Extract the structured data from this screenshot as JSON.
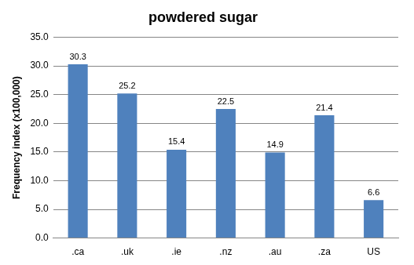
{
  "chart_data": {
    "type": "bar",
    "title": "powdered sugar",
    "y_label": "Frequency index (x100,000)",
    "categories": [
      ".ca",
      ".uk",
      ".ie",
      ".nz",
      ".au",
      ".za",
      "US"
    ],
    "values": [
      30.3,
      25.2,
      15.4,
      22.5,
      14.9,
      21.4,
      6.6
    ],
    "color": "#4f81bd",
    "ylim": [
      0,
      35
    ],
    "yticks": [
      {
        "value": 0,
        "label": "0.0"
      },
      {
        "value": 5,
        "label": "5.0"
      },
      {
        "value": 10,
        "label": "10.0"
      },
      {
        "value": 15,
        "label": "15.0"
      },
      {
        "value": 20,
        "label": "20.0"
      },
      {
        "value": 25,
        "label": "25.0"
      },
      {
        "value": 30,
        "label": "30.0"
      },
      {
        "value": 35,
        "label": "35.0"
      }
    ],
    "grid": true,
    "data_labels": true
  }
}
